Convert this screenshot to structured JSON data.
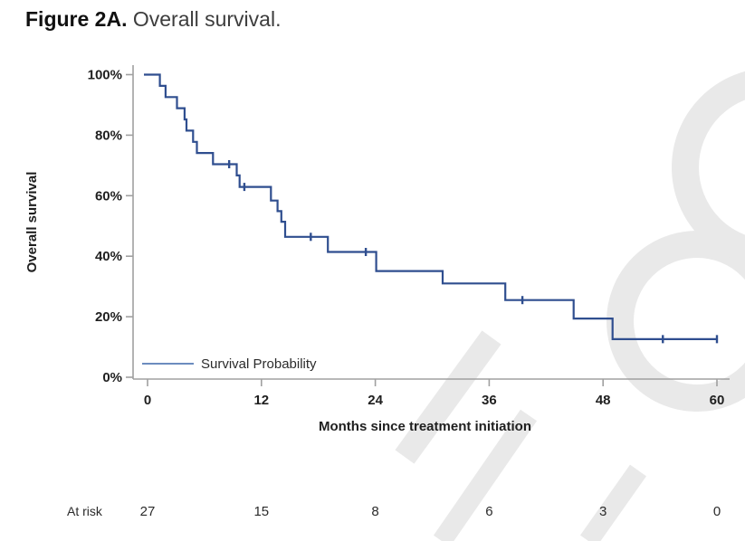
{
  "figure": {
    "label": "Figure 2A.",
    "caption": "Overall survival."
  },
  "chart_data": {
    "type": "line",
    "subtype": "kaplan_meier_step",
    "title": "Figure 2A. Overall survival.",
    "xlabel": "Months since treatment initiation",
    "ylabel": "Overall survival",
    "xlim": [
      0,
      60
    ],
    "ylim_percent": [
      0,
      100
    ],
    "x_ticks": [
      0,
      12,
      24,
      36,
      48,
      60
    ],
    "y_ticks_percent": [
      0,
      20,
      40,
      60,
      80,
      100
    ],
    "grid": false,
    "legend": {
      "position": "inside-bottom-left",
      "entries": [
        "Survival Probability"
      ]
    },
    "line_color": "#2f4e8f",
    "legend_line_color": "#6c8cbf",
    "axis_color": "#a0a0a0",
    "text_color": "#1f1f1f",
    "series": [
      {
        "name": "Survival Probability",
        "steps_month_percent": [
          [
            0,
            100
          ],
          [
            1.3,
            96.3
          ],
          [
            1.9,
            92.6
          ],
          [
            3.1,
            88.9
          ],
          [
            3.9,
            85.2
          ],
          [
            4.1,
            81.5
          ],
          [
            4.8,
            77.8
          ],
          [
            5.2,
            74.1
          ],
          [
            6.9,
            70.4
          ],
          [
            9.4,
            66.7
          ],
          [
            9.7,
            62.9
          ],
          [
            13.0,
            58.4
          ],
          [
            13.7,
            54.9
          ],
          [
            14.1,
            51.4
          ],
          [
            14.5,
            46.4
          ],
          [
            19.0,
            41.4
          ],
          [
            24.1,
            35.1
          ],
          [
            31.1,
            31.0
          ],
          [
            37.7,
            25.5
          ],
          [
            44.9,
            19.4
          ],
          [
            49.0,
            12.6
          ],
          [
            60,
            12.6
          ]
        ],
        "censor_marks_month_percent": [
          [
            8.6,
            70.4
          ],
          [
            10.2,
            62.9
          ],
          [
            17.2,
            46.4
          ],
          [
            23.0,
            41.4
          ],
          [
            39.5,
            25.5
          ],
          [
            54.3,
            12.6
          ],
          [
            60,
            12.6
          ]
        ]
      }
    ],
    "at_risk": {
      "label": "At risk",
      "months": [
        0,
        12,
        24,
        36,
        48,
        60
      ],
      "counts": [
        27,
        15,
        8,
        6,
        3,
        0
      ]
    }
  },
  "watermark": {
    "text": "Pre",
    "color": "#e9e9e9"
  }
}
